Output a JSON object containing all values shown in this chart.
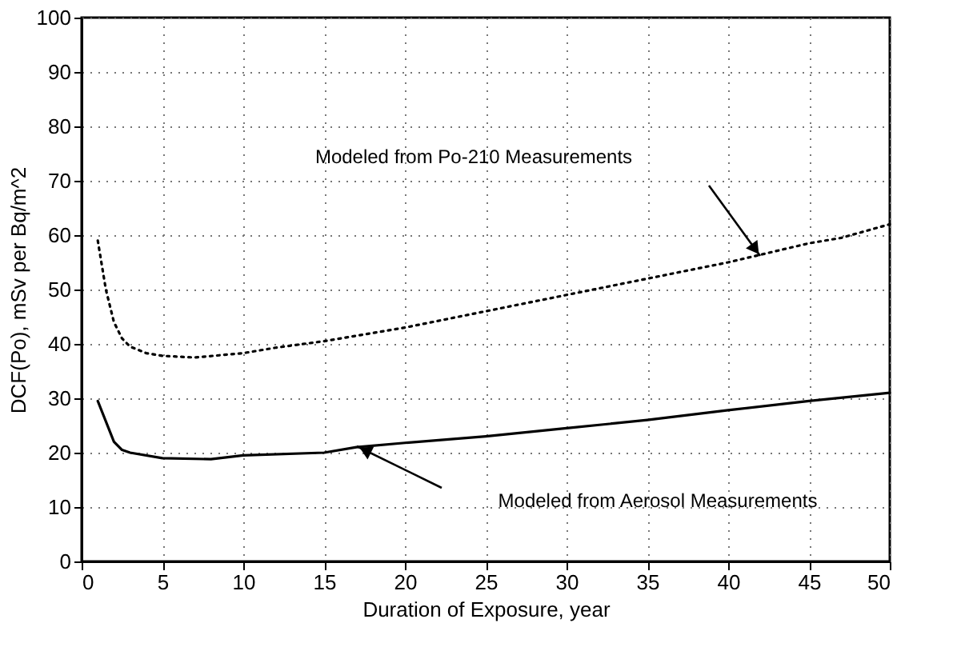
{
  "chart_data": {
    "type": "line",
    "xlabel": "Duration of Exposure, year",
    "ylabel": "DCF(Po), mSv per Bq/m^2",
    "xlim": [
      0,
      50
    ],
    "xticks": [
      0,
      5,
      10,
      15,
      20,
      25,
      30,
      35,
      40,
      45,
      50
    ],
    "ylim": [
      0,
      100
    ],
    "yticks": [
      0,
      10,
      20,
      30,
      40,
      50,
      60,
      70,
      80,
      90,
      100
    ],
    "grid": true,
    "series": [
      {
        "color": "#000000",
        "line_style": "dotted",
        "x": [
          1,
          1.5,
          2,
          2.5,
          3,
          4,
          5,
          7,
          10,
          12,
          15,
          20,
          25,
          30,
          35,
          40,
          45,
          47,
          50
        ],
        "values": [
          59,
          50,
          44,
          41,
          39.5,
          38.3,
          37.8,
          37.5,
          38.3,
          39.3,
          40.5,
          43,
          46,
          49,
          52,
          55,
          58.5,
          59.5,
          62
        ]
      },
      {
        "color": "#000000",
        "line_style": "solid",
        "x": [
          1,
          2,
          2.5,
          3,
          5,
          8,
          10,
          15,
          17,
          20,
          25,
          30,
          35,
          40,
          45,
          50
        ],
        "values": [
          29.5,
          22,
          20.5,
          20,
          19,
          18.8,
          19.5,
          20,
          21,
          21.8,
          23,
          24.5,
          26,
          27.8,
          29.5,
          31
        ]
      }
    ],
    "annotations": [
      "Modeled from Po-210 Measurements",
      "Modeled from Aerosol Measurements"
    ]
  }
}
